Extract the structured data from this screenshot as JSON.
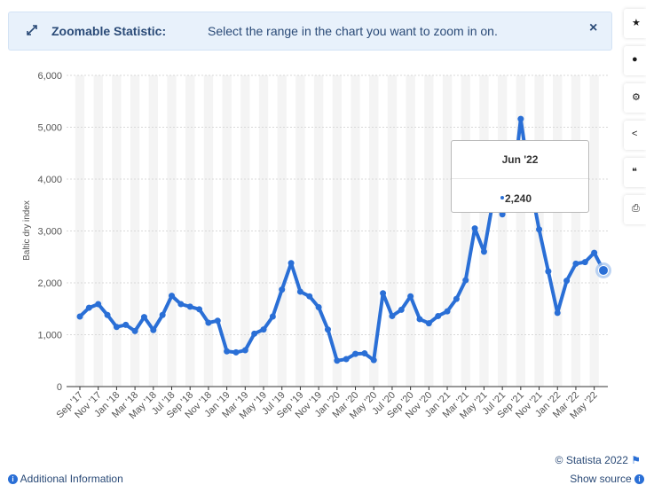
{
  "banner": {
    "icon": "expand-arrows-icon",
    "title": "Zoomable Statistic:",
    "text": "Select the range in the chart you want to zoom in on.",
    "close_icon": "close-icon"
  },
  "sidebar": [
    {
      "icon": "star-icon",
      "glyph": "★"
    },
    {
      "icon": "bell-icon",
      "glyph": "🔔"
    },
    {
      "icon": "gear-icon",
      "glyph": "⚙"
    },
    {
      "icon": "share-icon",
      "glyph": "<"
    },
    {
      "icon": "quote-icon",
      "glyph": "❝"
    },
    {
      "icon": "print-icon",
      "glyph": "⎙"
    }
  ],
  "tooltip": {
    "label": "Jun '22",
    "value": "2,240"
  },
  "footer": {
    "additional_info": "Additional Information",
    "copyright": "© Statista 2022",
    "show_source": "Show source"
  },
  "colors": {
    "line": "#2a6fd6",
    "banner_bg": "#e8f1fb",
    "text": "#2a4a77"
  },
  "chart_data": {
    "type": "line",
    "ylabel": "Baltic dry index",
    "xlabel": "",
    "ylim": [
      0,
      6000
    ],
    "yticks": [
      0,
      1000,
      2000,
      3000,
      4000,
      5000,
      6000
    ],
    "ytick_labels": [
      "0",
      "1,000",
      "2,000",
      "3,000",
      "4,000",
      "5,000",
      "6,000"
    ],
    "grid": true,
    "xtick_labels": [
      "Sep '17",
      "Nov '17",
      "Jan '18",
      "Mar '18",
      "May '18",
      "Jul '18",
      "Sep '18",
      "Nov '18",
      "Jan '19",
      "Mar '19",
      "May '19",
      "Jul '19",
      "Sep '19",
      "Nov '19",
      "Jan '20",
      "Mar '20",
      "May '20",
      "Jul '20",
      "Sep '20",
      "Nov '20",
      "Jan '21",
      "Mar '21",
      "May '21",
      "Jul '21",
      "Sep '21",
      "Nov '21",
      "Jan '22",
      "Mar '22",
      "May '22"
    ],
    "x": [
      "Sep '17",
      "Oct '17",
      "Nov '17",
      "Dec '17",
      "Jan '18",
      "Feb '18",
      "Mar '18",
      "Apr '18",
      "May '18",
      "Jun '18",
      "Jul '18",
      "Aug '18",
      "Sep '18",
      "Oct '18",
      "Nov '18",
      "Dec '18",
      "Jan '19",
      "Feb '19",
      "Mar '19",
      "Apr '19",
      "May '19",
      "Jun '19",
      "Jul '19",
      "Aug '19",
      "Sep '19",
      "Oct '19",
      "Nov '19",
      "Dec '19",
      "Jan '20",
      "Feb '20",
      "Mar '20",
      "Apr '20",
      "May '20",
      "Jun '20",
      "Jul '20",
      "Aug '20",
      "Sep '20",
      "Oct '20",
      "Nov '20",
      "Dec '20",
      "Jan '21",
      "Feb '21",
      "Mar '21",
      "Apr '21",
      "May '21",
      "Jun '21",
      "Jul '21",
      "Aug '21",
      "Sep '21",
      "Oct '21",
      "Nov '21",
      "Dec '21",
      "Jan '22",
      "Feb '22",
      "Mar '22",
      "Apr '22",
      "May '22",
      "Jun '22"
    ],
    "series": [
      {
        "values": [
          1350,
          1520,
          1590,
          1380,
          1150,
          1190,
          1070,
          1340,
          1090,
          1380,
          1750,
          1590,
          1540,
          1490,
          1230,
          1270,
          680,
          660,
          700,
          1020,
          1100,
          1350,
          1870,
          2380,
          1830,
          1740,
          1530,
          1100,
          500,
          530,
          630,
          640,
          510,
          1800,
          1360,
          1480,
          1740,
          1300,
          1220,
          1360,
          1450,
          1690,
          2050,
          3050,
          2600,
          3600,
          3320,
          3600,
          5160,
          3950,
          3030,
          2220,
          1420,
          2040,
          2370,
          2400,
          2580,
          2240
        ]
      }
    ],
    "highlight": {
      "index": 57,
      "label": "Jun '22",
      "value": 2240
    }
  }
}
